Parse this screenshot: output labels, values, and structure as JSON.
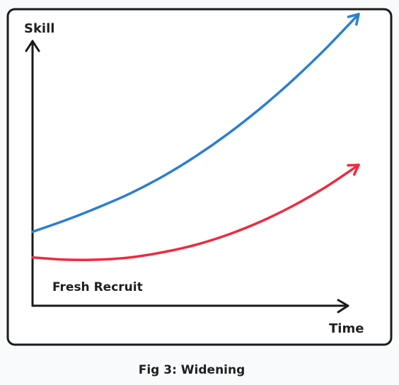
{
  "chart_data": {
    "type": "line",
    "title": "",
    "caption": "Fig 3: Widening",
    "xlabel": "Time",
    "ylabel": "Skill",
    "annotation": "Fresh Recruit",
    "grid": false,
    "legend": "none",
    "axis_ticks": "none",
    "x": [
      0,
      1,
      2,
      3,
      4,
      5,
      6,
      7,
      8,
      9,
      10
    ],
    "ylim": [
      0,
      10
    ],
    "xlim": [
      0,
      10.5
    ],
    "series": [
      {
        "color": "#2a7fd0",
        "end_arrow": true,
        "values": [
          2.6,
          3.0,
          3.45,
          3.95,
          4.55,
          5.25,
          6.05,
          6.95,
          7.95,
          9.05,
          10.25
        ]
      },
      {
        "color": "#ee2a3f",
        "end_arrow": true,
        "values": [
          1.7,
          1.62,
          1.62,
          1.7,
          1.88,
          2.14,
          2.5,
          2.96,
          3.52,
          4.18,
          4.95
        ]
      }
    ]
  }
}
